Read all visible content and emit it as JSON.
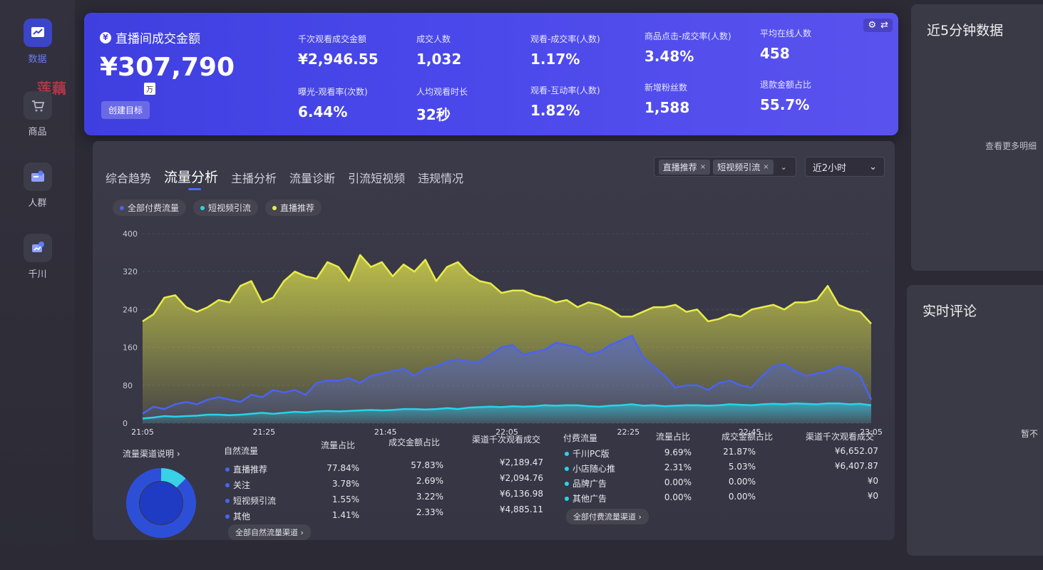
{
  "nav": {
    "items": [
      {
        "label": "数据",
        "icon": "chart-trend-icon",
        "active": true
      },
      {
        "label": "商品",
        "icon": "shopping-cart-icon",
        "active": false
      },
      {
        "label": "人群",
        "icon": "users-icon",
        "active": false
      },
      {
        "label": "千川",
        "icon": "megaphone-icon",
        "active": false
      }
    ],
    "watermark": "莲藕网"
  },
  "banner": {
    "title": "直播间成交金额",
    "gmv": "¥307,790",
    "unit": "万",
    "create_goal": "创建目标",
    "metrics": [
      {
        "label": "千次观看成交金额",
        "value": "¥2,946.55"
      },
      {
        "label": "成交人数",
        "value": "1,032"
      },
      {
        "label": "观看-成交率(人数)",
        "value": "1.17%"
      },
      {
        "label": "商品点击-成交率(人数)",
        "value": "3.48%"
      },
      {
        "label": "平均在线人数",
        "value": "458"
      },
      {
        "label": "曝光-观看率(次数)",
        "value": "6.44%"
      },
      {
        "label": "人均观看时长",
        "value": "32秒"
      },
      {
        "label": "观看-互动率(人数)",
        "value": "1.82%"
      },
      {
        "label": "新增粉丝数",
        "value": "1,588"
      },
      {
        "label": "退款金额占比",
        "value": "55.7%"
      }
    ],
    "tools": {
      "settings": "⚙",
      "swap": "⇄"
    }
  },
  "right": {
    "recent_title": "近5分钟数据",
    "more": "查看更多明细",
    "comments_title": "实时评论",
    "empty": "暂不"
  },
  "tabs": [
    "综合趋势",
    "流量分析",
    "主播分析",
    "流量诊断",
    "引流短视频",
    "违规情况"
  ],
  "active_tab": 1,
  "filters": {
    "chips": [
      "直播推荐",
      "短视频引流"
    ],
    "close": "×",
    "chevron": "⌄",
    "time": "近2小时"
  },
  "legend": [
    {
      "name": "全部付费流量",
      "color": "#4a63f0"
    },
    {
      "name": "短视频引流",
      "color": "#29d3e8"
    },
    {
      "name": "直播推荐",
      "color": "#e8ec4a"
    }
  ],
  "chart_data": {
    "type": "area",
    "x_ticks": [
      "21:05",
      "21:25",
      "21:45",
      "22:05",
      "22:25",
      "22:45",
      "23:05"
    ],
    "y_ticks": [
      "0",
      "80",
      "160",
      "240",
      "320",
      "400"
    ],
    "ylim": [
      0,
      400
    ],
    "series": [
      {
        "name": "直播推荐",
        "color": "#e8ec4a",
        "values": [
          215,
          230,
          265,
          270,
          245,
          235,
          245,
          260,
          255,
          290,
          300,
          255,
          265,
          300,
          320,
          310,
          305,
          340,
          330,
          300,
          355,
          330,
          340,
          310,
          335,
          320,
          345,
          300,
          330,
          340,
          315,
          300,
          295,
          275,
          280,
          280,
          270,
          265,
          255,
          260,
          245,
          255,
          250,
          240,
          225,
          225,
          235,
          245,
          245,
          250,
          235,
          240,
          215,
          220,
          230,
          225,
          240,
          245,
          250,
          240,
          255,
          255,
          260,
          290,
          250,
          240,
          235,
          210
        ]
      },
      {
        "name": "全部付费流量",
        "color": "#4a63f0",
        "values": [
          20,
          35,
          30,
          40,
          45,
          40,
          50,
          55,
          50,
          45,
          60,
          55,
          70,
          65,
          70,
          60,
          85,
          90,
          90,
          95,
          85,
          100,
          105,
          110,
          115,
          100,
          115,
          120,
          130,
          135,
          130,
          130,
          145,
          160,
          165,
          145,
          150,
          155,
          170,
          165,
          160,
          145,
          150,
          165,
          175,
          185,
          140,
          120,
          100,
          75,
          80,
          80,
          70,
          85,
          90,
          80,
          75,
          100,
          120,
          125,
          110,
          100,
          105,
          110,
          120,
          115,
          100,
          50
        ]
      },
      {
        "name": "短视频引流",
        "color": "#29d3e8",
        "values": [
          10,
          12,
          15,
          14,
          15,
          16,
          18,
          18,
          17,
          18,
          20,
          22,
          20,
          22,
          24,
          23,
          25,
          26,
          25,
          26,
          27,
          28,
          27,
          28,
          30,
          30,
          29,
          30,
          32,
          30,
          33,
          34,
          35,
          34,
          36,
          35,
          36,
          38,
          37,
          38,
          38,
          36,
          35,
          37,
          38,
          40,
          37,
          38,
          36,
          37,
          38,
          38,
          37,
          38,
          40,
          39,
          38,
          40,
          41,
          40,
          42,
          41,
          40,
          42,
          42,
          40,
          41,
          38
        ]
      }
    ]
  },
  "natural": {
    "title": "自然流量",
    "headers": [
      "流量占比",
      "成交金额占比",
      "渠道千次观看成交"
    ],
    "rows": [
      {
        "name": "直播推荐",
        "share": "77.84%",
        "gmv_share": "57.83%",
        "gpm": "¥2,189.47"
      },
      {
        "name": "关注",
        "share": "3.78%",
        "gmv_share": "2.69%",
        "gpm": "¥2,094.76"
      },
      {
        "name": "短视频引流",
        "share": "1.55%",
        "gmv_share": "3.22%",
        "gpm": "¥6,136.98"
      },
      {
        "name": "其他",
        "share": "1.41%",
        "gmv_share": "2.33%",
        "gpm": "¥4,885.11"
      }
    ],
    "all_link": "全部自然流量渠道 ›"
  },
  "paid": {
    "title": "付费流量",
    "headers": [
      "流量占比",
      "成交金额占比",
      "渠道千次观看成交"
    ],
    "rows": [
      {
        "name": "千川PC版",
        "share": "9.69%",
        "gmv_share": "21.87%",
        "gpm": "¥6,652.07"
      },
      {
        "name": "小店随心推",
        "share": "2.31%",
        "gmv_share": "5.03%",
        "gpm": "¥6,407.87"
      },
      {
        "name": "品牌广告",
        "share": "0.00%",
        "gmv_share": "0.00%",
        "gpm": "¥0"
      },
      {
        "name": "其他广告",
        "share": "0.00%",
        "gmv_share": "0.00%",
        "gpm": "¥0"
      }
    ],
    "all_link": "全部付费流量渠道 ›"
  },
  "channel_explain": "流量渠道说明 ›"
}
